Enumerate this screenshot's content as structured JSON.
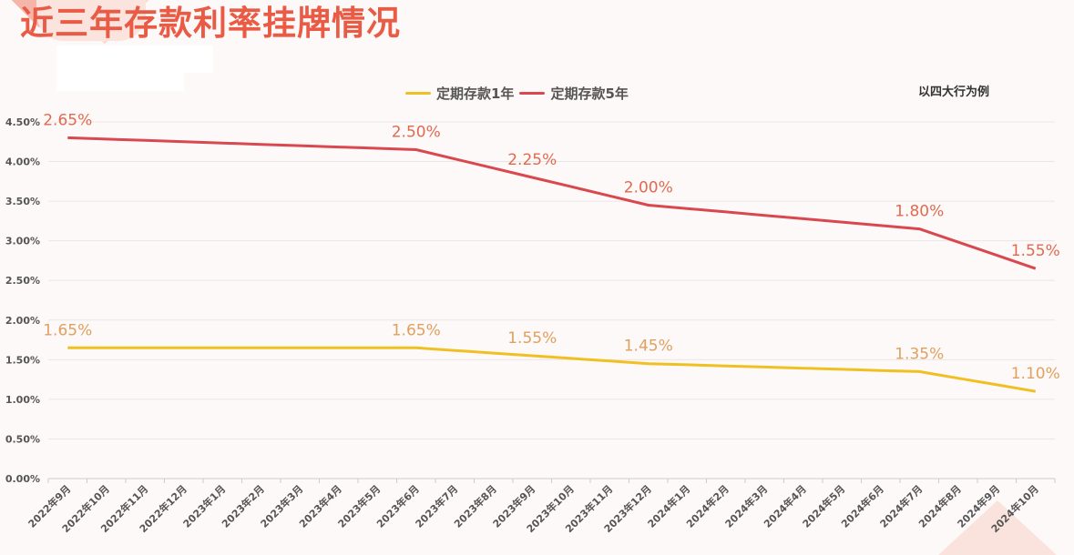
{
  "title": "近三年存款利率挂牌情况",
  "note": "以四大行为例",
  "legend": [
    {
      "label": "定期存款1年",
      "color": "#f0c022"
    },
    {
      "label": "定期存款5年",
      "color": "#d9484f"
    }
  ],
  "chart_data": {
    "type": "line",
    "title": "近三年存款利率挂牌情况",
    "subtitle": "以四大行为例",
    "stacked": true,
    "categories": [
      "2022年9月",
      "2022年10月",
      "2022年11月",
      "2022年12月",
      "2023年1月",
      "2023年2月",
      "2023年3月",
      "2023年4月",
      "2023年5月",
      "2023年6月",
      "2023年7月",
      "2023年8月",
      "2023年9月",
      "2023年10月",
      "2023年11月",
      "2023年12月",
      "2024年1月",
      "2024年2月",
      "2024年3月",
      "2024年4月",
      "2024年5月",
      "2024年6月",
      "2024年7月",
      "2024年8月",
      "2024年9月",
      "2024年10月"
    ],
    "series": [
      {
        "name": "定期存款1年",
        "color": "#f0c022",
        "label_color": "#e0a060",
        "points": [
          {
            "index": 0,
            "category": "2022年9月",
            "value": 1.65,
            "label": "1.65%"
          },
          {
            "index": 9,
            "category": "2023年6月",
            "value": 1.65,
            "label": "1.65%"
          },
          {
            "index": 12,
            "category": "2023年9月",
            "value": 1.55,
            "label": "1.55%"
          },
          {
            "index": 15,
            "category": "2023年12月",
            "value": 1.45,
            "label": "1.45%"
          },
          {
            "index": 22,
            "category": "2024年7月",
            "value": 1.35,
            "label": "1.35%"
          },
          {
            "index": 25,
            "category": "2024年10月",
            "value": 1.1,
            "label": "1.10%"
          }
        ]
      },
      {
        "name": "定期存款5年",
        "color": "#d9484f",
        "label_color": "#e06a50",
        "points": [
          {
            "index": 0,
            "category": "2022年9月",
            "value": 2.65,
            "label": "2.65%"
          },
          {
            "index": 9,
            "category": "2023年6月",
            "value": 2.5,
            "label": "2.50%"
          },
          {
            "index": 12,
            "category": "2023年9月",
            "value": 2.25,
            "label": "2.25%"
          },
          {
            "index": 15,
            "category": "2023年12月",
            "value": 2.0,
            "label": "2.00%"
          },
          {
            "index": 22,
            "category": "2024年7月",
            "value": 1.8,
            "label": "1.80%"
          },
          {
            "index": 25,
            "category": "2024年10月",
            "value": 1.55,
            "label": "1.55%"
          }
        ]
      }
    ],
    "xlabel": "",
    "ylabel": "",
    "ylim": [
      0,
      4.5
    ],
    "yticks": [
      "0.00%",
      "0.50%",
      "1.00%",
      "1.50%",
      "2.00%",
      "2.50%",
      "3.00%",
      "3.50%",
      "4.00%",
      "4.50%"
    ],
    "grid": true,
    "legend_position": "top"
  }
}
